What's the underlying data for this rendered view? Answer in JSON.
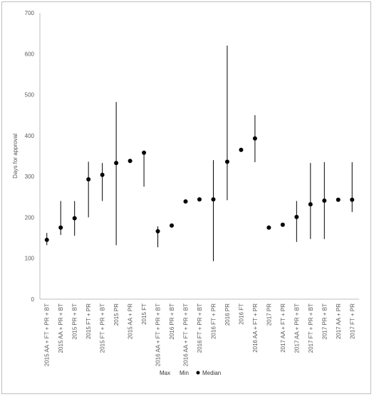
{
  "chart_data": {
    "type": "scatter",
    "ylabel": "Days for approval",
    "xlabel": "",
    "ylim": [
      0,
      700
    ],
    "yticks": [
      "0",
      "100",
      "200",
      "300",
      "400",
      "500",
      "600",
      "700"
    ],
    "grid": false,
    "legend_position": "bottom",
    "categories": [
      "2015 AA + FT + PR + BT",
      "2015 AA + PR + BT",
      "2015 PR + BT",
      "2015 FT + PR",
      "2015 FT + PR + BT",
      "2015 PR",
      "2015 AA + PR",
      "2015 FT",
      "2016 AA + FT + PR + BT",
      "2016 PR + BT",
      "2016 AA + FT + PR + BT",
      "2016 FT + PR + BT",
      "2016 FT + PR",
      "2016 PR",
      "2016 FT",
      "2016 AA + FT + PR",
      "2017 PR",
      "2017 AA + FT + PR",
      "2017 AA + PR + BT",
      "2017 FT + PR + BT",
      "2017 PR + BT",
      "2017 AA + PR",
      "2017 FT + PR"
    ],
    "series": [
      {
        "name": "Max",
        "values": [
          162,
          240,
          240,
          336,
          333,
          482,
          null,
          362,
          178,
          null,
          null,
          null,
          340,
          620,
          null,
          450,
          null,
          null,
          240,
          333,
          335,
          null,
          335
        ]
      },
      {
        "name": "Min",
        "values": [
          132,
          157,
          155,
          200,
          240,
          132,
          null,
          275,
          127,
          null,
          null,
          null,
          93,
          242,
          null,
          335,
          null,
          null,
          140,
          147,
          147,
          null,
          213
        ]
      },
      {
        "name": "Median",
        "values": [
          145,
          175,
          198,
          293,
          304,
          333,
          338,
          358,
          166,
          180,
          239,
          244,
          244,
          336,
          365,
          393,
          175,
          182,
          201,
          232,
          241,
          243,
          243
        ]
      }
    ],
    "legend": [
      "Max",
      "Min",
      "Median"
    ],
    "colors": {
      "line": "#000000",
      "marker": "#000000",
      "axis": "#bfbfbf",
      "text": "#595959"
    }
  }
}
